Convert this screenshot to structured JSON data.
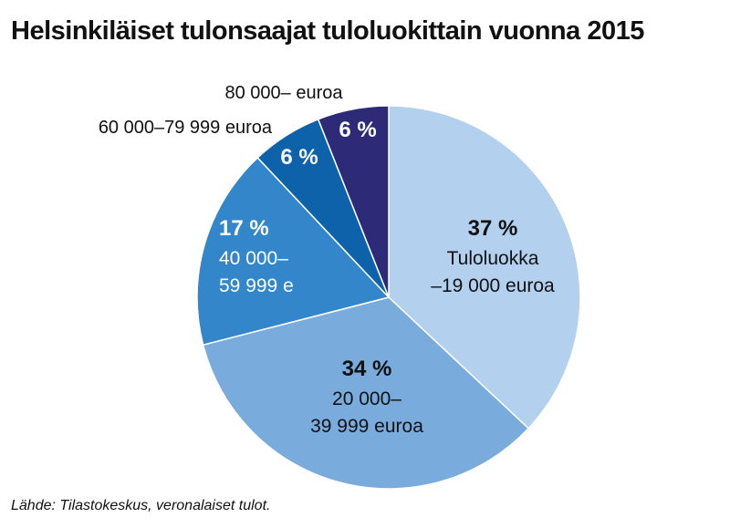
{
  "chart_data": {
    "type": "pie",
    "title": "Helsinkiläiset tulonsaajat tuloluokittain vuonna 2015",
    "source": "Lähde: Tilastokeskus, veronalaiset tulot.",
    "slices": [
      {
        "percent_label": "37 %",
        "value": 37,
        "label_lines": [
          "Tuloluokka",
          "–19 000 euroa"
        ],
        "color": "#b3d0ef",
        "text_color": "#111111"
      },
      {
        "percent_label": "34 %",
        "value": 34,
        "label_lines": [
          "20 000–",
          "39 999 euroa"
        ],
        "color": "#79abdc",
        "text_color": "#111111"
      },
      {
        "percent_label": "17 %",
        "value": 17,
        "label_lines": [
          "40 000–",
          "59 999 e"
        ],
        "color": "#3286c9",
        "text_color": "#ffffff"
      },
      {
        "percent_label": "6 %",
        "value": 6,
        "label_lines": [
          "60 000–79 999 euroa"
        ],
        "color": "#0d62aa",
        "text_color": "#ffffff"
      },
      {
        "percent_label": "6 %",
        "value": 6,
        "label_lines": [
          "80 000– euroa"
        ],
        "color": "#2d2a78",
        "text_color": "#ffffff"
      }
    ]
  }
}
